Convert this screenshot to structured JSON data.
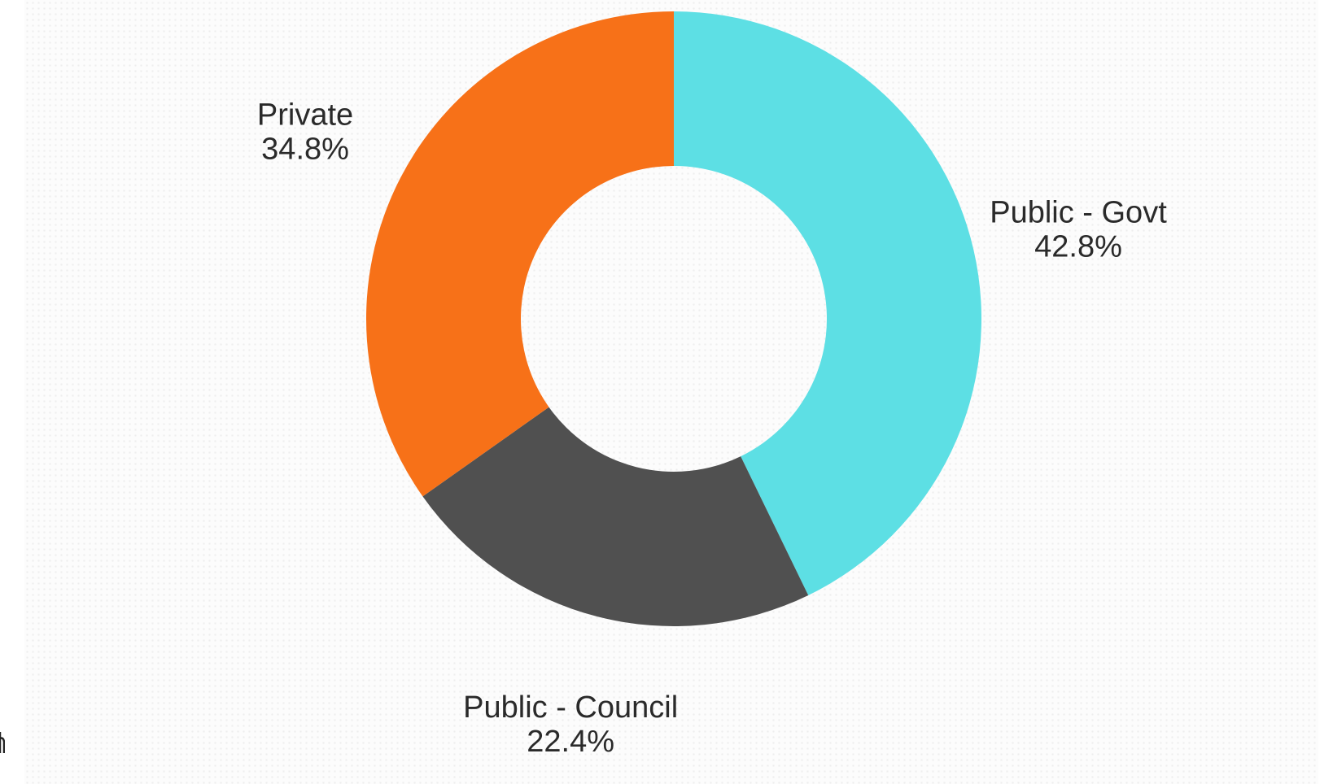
{
  "chart_data": {
    "type": "pie",
    "variant": "donut",
    "title": "",
    "slices": [
      {
        "label": "Public - Govt",
        "value": 42.8,
        "value_label": "42.8%",
        "color": "#5ddfe4"
      },
      {
        "label": "Public - Council",
        "value": 22.4,
        "value_label": "22.4%",
        "color": "#505050"
      },
      {
        "label": "Private",
        "value": 34.8,
        "value_label": "34.8%",
        "color": "#f77118"
      }
    ],
    "start_angle_deg": 0,
    "direction": "clockwise",
    "legend": "none",
    "labels_outside": true
  }
}
